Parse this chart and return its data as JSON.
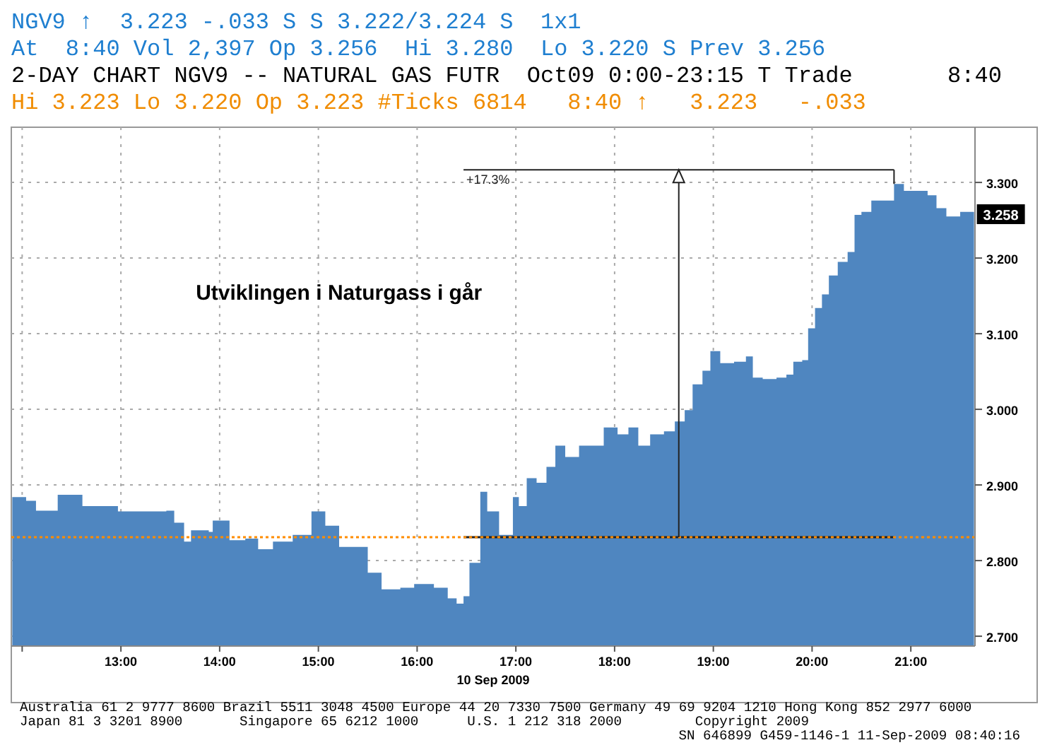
{
  "chart_data": {
    "type": "area",
    "title": "Utviklingen i Naturgass i går",
    "xlabel": "10 Sep 2009",
    "annotations": [
      "NGV9 ↑  3.223 -.033 S S 3.222/3.224 S  1x1",
      "At  8:40 Vol 2,397 Op 3.256  Hi 3.280  Lo 3.220 S Prev 3.256",
      "2-DAY CHART NGV9 -- NATURAL GAS FUTR  Oct09 0:00-23:15 T Trade       8:40",
      "Hi 3.223 Lo 3.220 Op 3.223 #Ticks 6814   8:40 ↑   3.223   -.033",
      "Australia 61 2 9777 8600 Brazil 5511 3048 4500 Europe 44 20 7330 7500 Germany 49 69 9204 1210 Hong Kong 852 2977 6000",
      "Japan 81 3 3201 8900       Singapore 65 6212 1000      U.S. 1 212 318 2000         Copyright 2009",
      "SN 646899 G459-1146-1 11-Sep-2009 08:40:16",
      "+17.3%",
      {
        "text": "3.258",
        "x": 21.64,
        "y": 3.258
      }
    ],
    "x": [
      11.9,
      12.04,
      12.14,
      12.36,
      12.61,
      12.97,
      13.21,
      13.46,
      13.54,
      13.64,
      13.71,
      13.89,
      13.93,
      14.1,
      14.26,
      14.39,
      14.54,
      14.74,
      14.93,
      15.07,
      15.21,
      15.46,
      15.5,
      15.64,
      15.83,
      15.97,
      16.17,
      16.31,
      16.4,
      16.47,
      16.53,
      16.64,
      16.71,
      16.83,
      16.97,
      17.03,
      17.11,
      17.21,
      17.31,
      17.4,
      17.5,
      17.64,
      17.79,
      17.89,
      18.03,
      18.14,
      18.24,
      18.36,
      18.5,
      18.61,
      18.71,
      18.79,
      18.89,
      18.97,
      19.07,
      19.21,
      19.33,
      19.4,
      19.5,
      19.64,
      19.74,
      19.81,
      19.9,
      19.96,
      20.03,
      20.1,
      20.17,
      20.26,
      20.36,
      20.43,
      20.5,
      20.6,
      20.74,
      20.83,
      20.93,
      21.03,
      21.17,
      21.26,
      21.36,
      21.5,
      21.64
    ],
    "series": [
      {
        "color": "#4f86c0",
        "values": [
          2.884,
          2.879,
          2.866,
          2.887,
          2.872,
          2.865,
          2.865,
          2.866,
          2.85,
          2.825,
          2.84,
          2.838,
          2.853,
          2.827,
          2.829,
          2.815,
          2.825,
          2.834,
          2.865,
          2.846,
          2.818,
          2.818,
          2.784,
          2.762,
          2.764,
          2.769,
          2.764,
          2.75,
          2.743,
          2.753,
          2.797,
          2.891,
          2.865,
          2.834,
          2.884,
          2.872,
          2.909,
          2.903,
          2.924,
          2.952,
          2.937,
          2.952,
          2.952,
          2.976,
          2.967,
          2.976,
          2.952,
          2.967,
          2.971,
          2.984,
          2.999,
          3.033,
          3.051,
          3.077,
          3.061,
          3.063,
          3.07,
          3.042,
          3.04,
          3.042,
          3.046,
          3.063,
          3.065,
          3.107,
          3.134,
          3.152,
          3.177,
          3.195,
          3.208,
          3.257,
          3.261,
          3.276,
          3.276,
          3.298,
          3.289,
          3.289,
          3.283,
          3.266,
          3.255,
          3.261,
          3.257
        ]
      },
      {
        "type": "line",
        "color": "#222222",
        "x": [
          16.47,
          20.83
        ],
        "values": [
          2.831,
          2.831
        ]
      }
    ],
    "xlim": [
      11.89,
      21.65
    ],
    "xticks": [
      {
        "value": 12,
        "label": null
      },
      {
        "value": 13,
        "label": "13:00"
      },
      {
        "value": 14,
        "label": "14:00"
      },
      {
        "value": 15,
        "label": "15:00"
      },
      {
        "value": 16,
        "label": "16:00"
      },
      {
        "value": 17,
        "label": "17:00"
      },
      {
        "value": 18,
        "label": "18:00"
      },
      {
        "value": 19,
        "label": "19:00"
      },
      {
        "value": 20,
        "label": "20:00"
      },
      {
        "value": 21,
        "label": "21:00"
      }
    ],
    "ylim": [
      2.687,
      3.373
    ],
    "yticks": [
      {
        "value": 2.7,
        "label": "2.700"
      },
      {
        "value": 2.8,
        "label": "2.800"
      },
      {
        "value": 2.9,
        "label": "2.900"
      },
      {
        "value": 3.0,
        "label": "3.000"
      },
      {
        "value": 3.1,
        "label": "3.100"
      },
      {
        "value": 3.2,
        "label": "3.200"
      },
      {
        "value": 3.3,
        "label": "3.300"
      }
    ],
    "ref_lines": [
      {
        "axis": "y",
        "value": 2.831,
        "color": "#ff8c00",
        "line_style": "dotted"
      }
    ],
    "grid": true
  }
}
